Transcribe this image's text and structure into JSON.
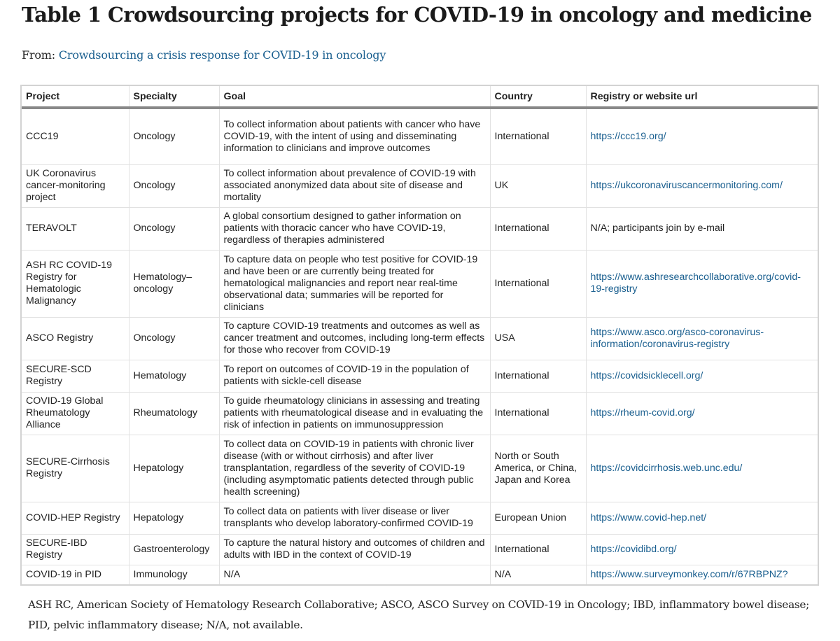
{
  "title": "Table 1 Crowdsourcing projects for COVID-19 in oncology and medicine",
  "from": {
    "label": "From:",
    "link_text": "Crowdsourcing a crisis response for COVID-19 in oncology"
  },
  "table": {
    "headers": [
      "Project",
      "Specialty",
      "Goal",
      "Country",
      "Registry or website url"
    ],
    "rows": [
      {
        "project": "CCC19",
        "specialty": "Oncology",
        "goal": "To collect information about patients with cancer who have COVID-19, with the intent of using and disseminating information to clinicians and improve outcomes",
        "country": "International",
        "url": "https://ccc19.org/",
        "url_is_link": true
      },
      {
        "project": "UK Coronavirus cancer-monitoring project",
        "specialty": "Oncology",
        "goal": "To collect information about prevalence of COVID-19 with associated anonymized data about site of disease and mortality",
        "country": "UK",
        "url": "https://ukcoronaviruscancermonitoring.com/",
        "url_is_link": true
      },
      {
        "project": "TERAVOLT",
        "specialty": "Oncology",
        "goal": "A global consortium designed to gather information on patients with thoracic cancer who have COVID-19, regardless of therapies administered",
        "country": "International",
        "url": "N/A; participants join by e-mail",
        "url_is_link": false
      },
      {
        "project": "ASH RC COVID-19 Registry for Hematologic Malignancy",
        "specialty": "Hematology–oncology",
        "goal": "To capture data on people who test positive for COVID-19 and have been or are currently being treated for hematological malignancies and report near real-time observational data; summaries will be reported for clinicians",
        "country": "International",
        "url": "https://www.ashresearchcollaborative.org/covid-19-registry",
        "url_is_link": true
      },
      {
        "project": "ASCO Registry",
        "specialty": "Oncology",
        "goal": "To capture COVID-19 treatments and outcomes as well as cancer treatment and outcomes, including long-term effects for those who recover from COVID-19",
        "country": "USA",
        "url": "https://www.asco.org/asco-coronavirus-information/coronavirus-registry",
        "url_is_link": true
      },
      {
        "project": "SECURE-SCD Registry",
        "specialty": "Hematology",
        "goal": "To report on outcomes of COVID-19 in the population of patients with sickle-cell disease",
        "country": "International",
        "url": "https://covidsicklecell.org/",
        "url_is_link": true
      },
      {
        "project": "COVID-19 Global Rheumatology Alliance",
        "specialty": "Rheumatology",
        "goal": "To guide rheumatology clinicians in assessing and treating patients with rheumatological disease and in evaluating the risk of infection in patients on immunosuppression",
        "country": "International",
        "url": "https://rheum-covid.org/",
        "url_is_link": true
      },
      {
        "project": "SECURE-Cirrhosis Registry",
        "specialty": "Hepatology",
        "goal": "To collect data on COVID-19 in patients with chronic liver disease (with or without cirrhosis) and after liver transplantation, regardless of the severity of COVID-19 (including asymptomatic patients detected through public health screening)",
        "country": "North or South America, or China, Japan and Korea",
        "url": "https://covidcirrhosis.web.unc.edu/",
        "url_is_link": true
      },
      {
        "project": "COVID-HEP Registry",
        "specialty": "Hepatology",
        "goal": "To collect data on patients with liver disease or liver transplants who develop laboratory-confirmed COVID-19",
        "country": "European Union",
        "url": "https://www.covid-hep.net/",
        "url_is_link": true
      },
      {
        "project": "SECURE-IBD Registry",
        "specialty": "Gastroenterology",
        "goal": "To capture the natural history and outcomes of children and adults with IBD in the context of COVID-19",
        "country": "International",
        "url": "https://covidibd.org/",
        "url_is_link": true
      },
      {
        "project": "COVID-19 in PID",
        "specialty": "Immunology",
        "goal": "N/A",
        "country": "N/A",
        "url": "https://www.surveymonkey.com/r/67RBPNZ?",
        "url_is_link": true
      }
    ]
  },
  "footnote": "ASH RC, American Society of Hematology Research Collaborative; ASCO, ASCO Survey on COVID-19 in Oncology; IBD, inflammatory bowel disease; PID, pelvic inflammatory disease; N/A, not available.",
  "colors": {
    "link": "#1a5f8f",
    "text": "#222222",
    "border": "#e1e1e1"
  }
}
